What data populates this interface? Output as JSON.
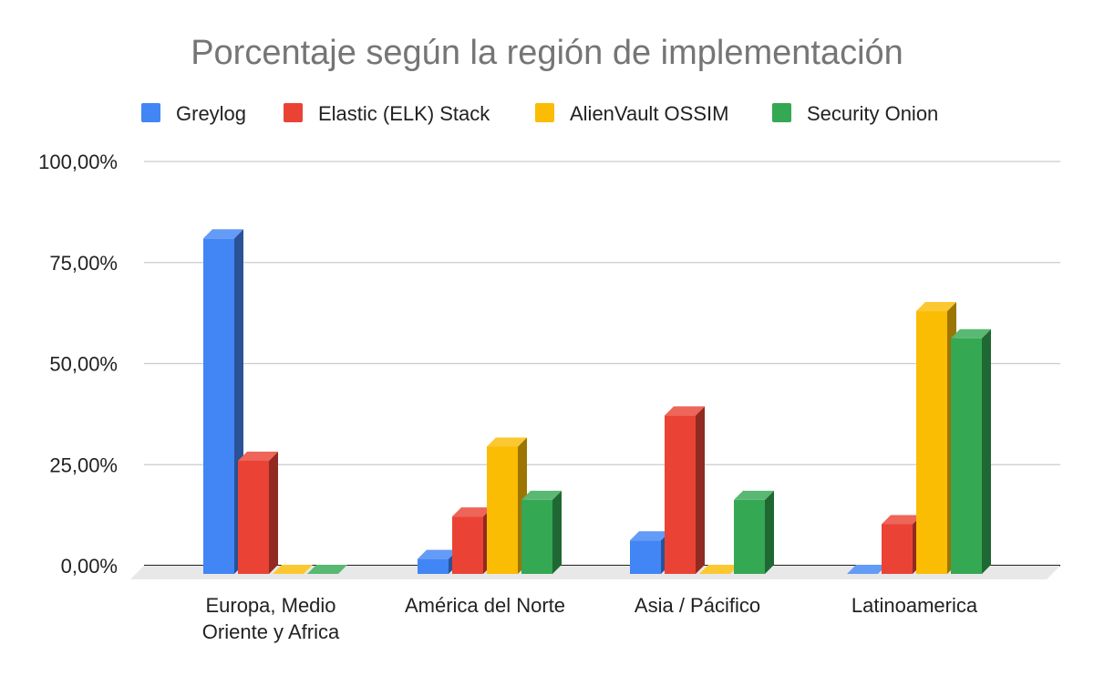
{
  "chart_data": {
    "type": "bar",
    "style": "3d-clustered-column",
    "title": "Porcentaje según la región de implementación",
    "categories": [
      [
        "Europa, Medio",
        "Oriente y Africa"
      ],
      [
        "América del Norte"
      ],
      [
        "Asia / Pácifico"
      ],
      [
        "Latinoamerica"
      ]
    ],
    "series": [
      {
        "name": "Greylog",
        "color": "#4285F4",
        "values": [
          83.0,
          3.7,
          8.3,
          0.0
        ]
      },
      {
        "name": "Elastic (ELK) Stack",
        "color": "#EA4335",
        "values": [
          28.0,
          14.2,
          39.2,
          12.3
        ]
      },
      {
        "name": "AlienVault OSSIM",
        "color": "#FBBC04",
        "values": [
          0.0,
          31.5,
          0.0,
          65.0
        ]
      },
      {
        "name": "Security Onion",
        "color": "#34A853",
        "values": [
          0.0,
          18.3,
          18.3,
          58.3
        ]
      }
    ],
    "yticks": [
      "0,00%",
      "25,00%",
      "50,00%",
      "75,00%",
      "100,00%"
    ],
    "ylim": [
      0,
      100
    ],
    "grid": true,
    "legend_position": "top"
  }
}
